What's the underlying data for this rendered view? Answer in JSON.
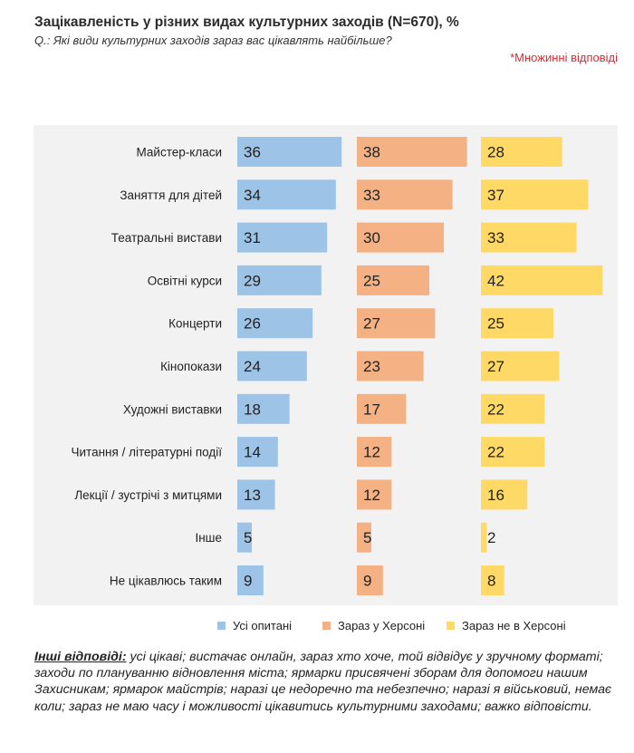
{
  "header": {
    "title": "Зацікавленість у різних видах культурних заходів (N=670), %",
    "question": "Q.: Які види культурних заходів зараз вас цікавлять найбільше?",
    "note": "*Множинні відповіді"
  },
  "chart_data": {
    "type": "bar",
    "orientation": "horizontal",
    "layout": "panels",
    "categories": [
      "Майстер-класи",
      "Заняття для дітей",
      "Театральні вистави",
      "Освітні курси",
      "Концерти",
      "Кінопокази",
      "Художні виставки",
      "Читання / літературні події",
      "Лекції / зустрічі з митцями",
      "Інше",
      "Не цікавлюсь таким"
    ],
    "series": [
      {
        "name": "Усі опитані",
        "color": "#9dc3e6",
        "values": [
          36,
          34,
          31,
          29,
          26,
          24,
          18,
          14,
          13,
          5,
          9
        ]
      },
      {
        "name": "Зараз у Херсоні",
        "color": "#f4b183",
        "values": [
          38,
          33,
          30,
          25,
          27,
          23,
          17,
          12,
          12,
          5,
          9
        ]
      },
      {
        "name": "Зараз не в Херсоні",
        "color": "#ffd966",
        "values": [
          28,
          37,
          33,
          42,
          25,
          27,
          22,
          22,
          16,
          2,
          8
        ]
      }
    ],
    "xlim": [
      0,
      42
    ],
    "grid": false,
    "legend_position": "bottom"
  },
  "footnote": {
    "label": "Інші відповіді:",
    "text": " усі цікаві; вистачає онлайн, зараз хто хоче, той відвідує у зручному форматі; заходи по плануванню відновлення міста; ярмарки присвячені зборам для допомоги нашим Захисникам; ярмарок майстрів; наразі це недоречно та небезпечно; наразі я військовий, немає коли; зараз не маю часу і можливості цікавитись культурними заходами; важко відповісти."
  }
}
